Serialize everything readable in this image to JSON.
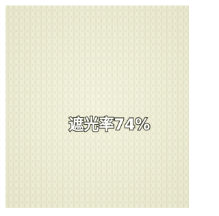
{
  "caption": "遮光率74%"
}
